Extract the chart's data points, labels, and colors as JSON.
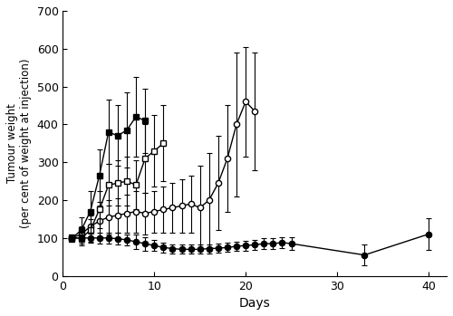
{
  "title": "",
  "xlabel": "Days",
  "ylabel": "Tumour weight\n(per cent of weight at injection)",
  "ylim": [
    0,
    700
  ],
  "xlim": [
    0,
    42
  ],
  "yticks": [
    0,
    100,
    200,
    300,
    400,
    500,
    600,
    700
  ],
  "xticks": [
    0,
    10,
    20,
    30,
    40
  ],
  "control_x": [
    1,
    2,
    3,
    4,
    5,
    6,
    7,
    8,
    9
  ],
  "control_y": [
    100,
    120,
    170,
    265,
    380,
    370,
    385,
    420,
    410
  ],
  "control_yerr": [
    10,
    35,
    55,
    70,
    85,
    80,
    100,
    105,
    85
  ],
  "vinsol_x": [
    1,
    2,
    3,
    4,
    5,
    6,
    7,
    8,
    9,
    10,
    11
  ],
  "vinsol_y": [
    100,
    100,
    120,
    175,
    240,
    245,
    250,
    240,
    310,
    330,
    350
  ],
  "vinsol_yerr": [
    10,
    20,
    30,
    50,
    55,
    60,
    65,
    65,
    90,
    95,
    100
  ],
  "dspc_x": [
    1,
    2,
    3,
    4,
    5,
    6,
    7,
    8,
    9,
    10,
    11,
    12,
    13,
    14,
    15,
    16,
    17,
    18,
    19,
    20,
    21
  ],
  "dspc_y": [
    100,
    110,
    130,
    145,
    155,
    160,
    165,
    170,
    165,
    170,
    175,
    180,
    185,
    190,
    180,
    200,
    245,
    310,
    400,
    460,
    435
  ],
  "dspc_yerr": [
    10,
    20,
    30,
    40,
    45,
    45,
    50,
    55,
    55,
    55,
    60,
    65,
    70,
    75,
    110,
    125,
    125,
    140,
    190,
    145,
    155
  ],
  "smchol_x": [
    1,
    2,
    3,
    4,
    5,
    6,
    7,
    8,
    9,
    10,
    11,
    12,
    13,
    14,
    15,
    16,
    17,
    18,
    19,
    20,
    21,
    22,
    23,
    24,
    25,
    33,
    40
  ],
  "smchol_y": [
    100,
    100,
    100,
    100,
    100,
    98,
    95,
    90,
    85,
    80,
    75,
    72,
    70,
    70,
    70,
    72,
    73,
    75,
    78,
    80,
    82,
    85,
    85,
    88,
    85,
    55,
    110
  ],
  "smchol_yerr": [
    8,
    10,
    12,
    15,
    15,
    15,
    15,
    18,
    18,
    15,
    13,
    12,
    12,
    12,
    12,
    12,
    12,
    12,
    13,
    13,
    13,
    14,
    14,
    15,
    16,
    28,
    42
  ],
  "line_color": "#000000",
  "bg_color": "#ffffff"
}
